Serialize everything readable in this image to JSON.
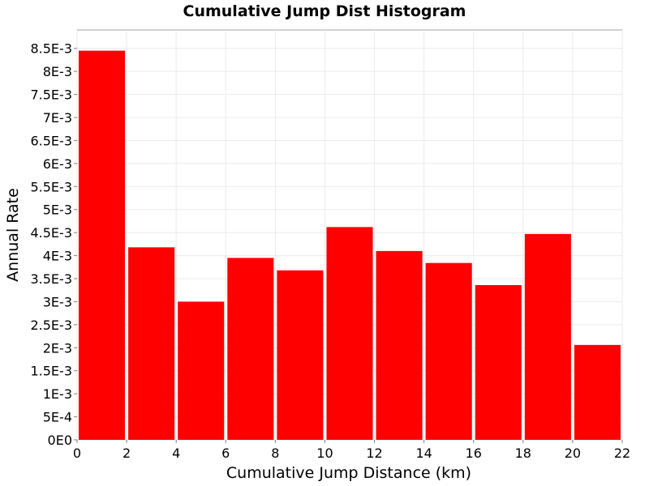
{
  "chart_data": {
    "type": "bar",
    "title": "Cumulative Jump Dist Histogram",
    "xlabel": "Cumulative Jump Distance (km)",
    "ylabel": "Annual Rate",
    "xlim": [
      0,
      22
    ],
    "ylim": [
      0,
      0.0089
    ],
    "x_ticks": [
      0,
      2,
      4,
      6,
      8,
      10,
      12,
      14,
      16,
      18,
      20,
      22
    ],
    "x_tick_labels": [
      "0",
      "2",
      "4",
      "6",
      "8",
      "10",
      "12",
      "14",
      "16",
      "18",
      "20",
      "22"
    ],
    "y_ticks": [
      0,
      0.0005,
      0.001,
      0.0015,
      0.002,
      0.0025,
      0.003,
      0.0035,
      0.004,
      0.0045,
      0.005,
      0.0055,
      0.006,
      0.0065,
      0.007,
      0.0075,
      0.008,
      0.0085
    ],
    "y_tick_labels": [
      "0E0",
      "5E-4",
      "1E-3",
      "1.5E-3",
      "2E-3",
      "2.5E-3",
      "3E-3",
      "3.5E-3",
      "4E-3",
      "4.5E-3",
      "5E-3",
      "5.5E-3",
      "6E-3",
      "6.5E-3",
      "7E-3",
      "7.5E-3",
      "8E-3",
      "8.5E-3"
    ],
    "grid": true,
    "bar_color": "#ff0000",
    "bins": [
      {
        "x0": 0,
        "x1": 2,
        "value": 0.00845
      },
      {
        "x0": 2,
        "x1": 4,
        "value": 0.00418
      },
      {
        "x0": 4,
        "x1": 6,
        "value": 0.003
      },
      {
        "x0": 6,
        "x1": 8,
        "value": 0.00395
      },
      {
        "x0": 8,
        "x1": 10,
        "value": 0.00368
      },
      {
        "x0": 10,
        "x1": 12,
        "value": 0.00462
      },
      {
        "x0": 12,
        "x1": 14,
        "value": 0.0041
      },
      {
        "x0": 14,
        "x1": 16,
        "value": 0.00384
      },
      {
        "x0": 16,
        "x1": 18,
        "value": 0.00336
      },
      {
        "x0": 18,
        "x1": 20,
        "value": 0.00447
      },
      {
        "x0": 20,
        "x1": 22,
        "value": 0.00206
      }
    ]
  }
}
